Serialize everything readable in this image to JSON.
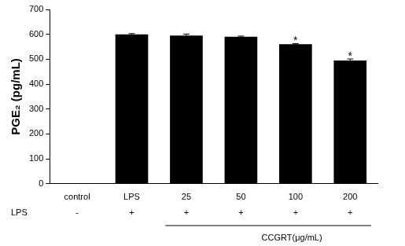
{
  "chart_data": {
    "type": "bar",
    "y_label": "PGE₂ (pg/mL)",
    "categories": [
      "control",
      "LPS",
      "25",
      "50",
      "100",
      "200"
    ],
    "values": [
      0,
      600,
      595,
      590,
      560,
      495
    ],
    "errors": [
      null,
      3,
      6,
      3,
      3,
      6
    ],
    "annotations": [
      null,
      null,
      null,
      null,
      "*",
      "*"
    ],
    "row_label": "LPS",
    "row_values": [
      "-",
      "+",
      "+",
      "+",
      "+",
      "+"
    ],
    "group": {
      "label": "CCGRT(μg/mL)",
      "categories": [
        "25",
        "50",
        "100",
        "200"
      ]
    },
    "color": "#000000",
    "ylim": [
      0,
      700
    ],
    "yticks": [
      0,
      100,
      200,
      300,
      400,
      500,
      600,
      700
    ],
    "grid": false
  }
}
